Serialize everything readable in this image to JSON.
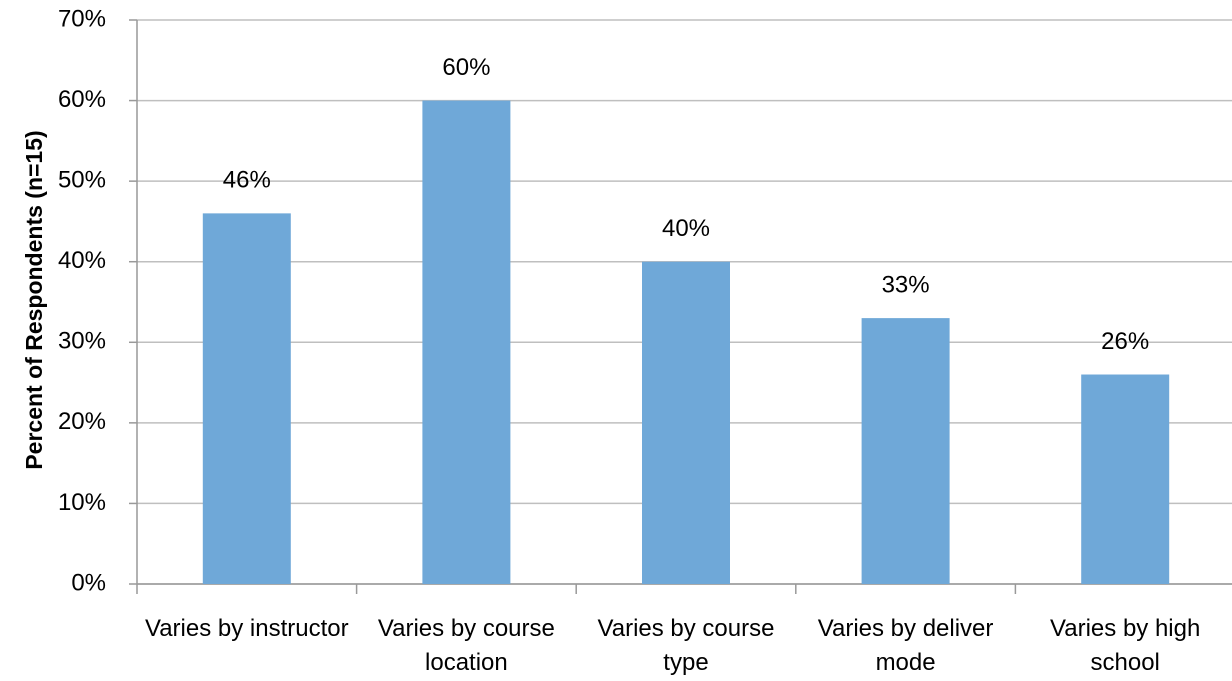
{
  "chart_data": {
    "type": "bar",
    "y_axis_label": "Percent of Respondents (n=15)",
    "categories": [
      "Varies by instructor",
      "Varies by course location",
      "Varies by course type",
      "Varies by deliver mode",
      "Varies by high school"
    ],
    "values": [
      46,
      60,
      40,
      33,
      26
    ],
    "value_labels": [
      "46%",
      "60%",
      "40%",
      "33%",
      "26%"
    ],
    "color": "#6fa8d8",
    "ylim": [
      0,
      70
    ],
    "yticks": [
      {
        "value": 0,
        "label": "0%"
      },
      {
        "value": 10,
        "label": "10%"
      },
      {
        "value": 20,
        "label": "20%"
      },
      {
        "value": 30,
        "label": "30%"
      },
      {
        "value": 40,
        "label": "40%"
      },
      {
        "value": 50,
        "label": "50%"
      },
      {
        "value": 60,
        "label": "60%"
      },
      {
        "value": 70,
        "label": "70%"
      }
    ],
    "grid": true
  }
}
